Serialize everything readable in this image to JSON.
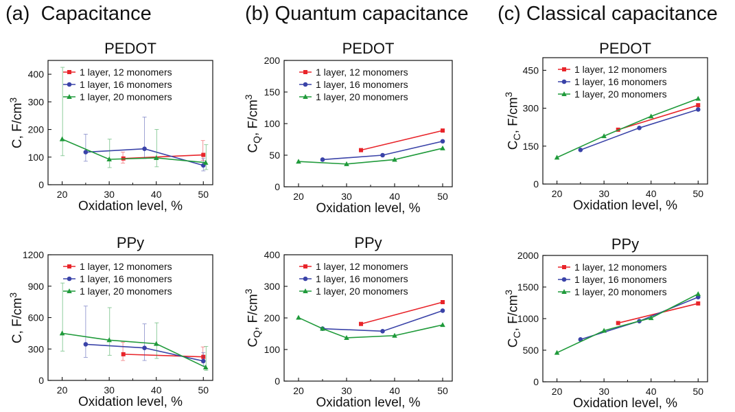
{
  "headings": [
    {
      "tag": "(a)",
      "title": "Capacitance"
    },
    {
      "tag": "(b)",
      "title": "Quantum capacitance"
    },
    {
      "tag": "(c)",
      "title": "Classical capacitance"
    }
  ],
  "colors": {
    "s12": "#e8242a",
    "s16": "#3a43a8",
    "s20": "#1f9a3a"
  },
  "markers": {
    "s12": "square",
    "s16": "circle",
    "s20": "triangle"
  },
  "chart_data": [
    {
      "type": "line",
      "title": "PEDOT",
      "xlabel": "Oxidation level, %",
      "ylabel": {
        "main": "C, F/cm",
        "sup": "3",
        "sub": ""
      },
      "xlim": [
        17,
        52
      ],
      "ylim": [
        0,
        450
      ],
      "xticks": [
        20,
        30,
        40,
        50
      ],
      "yticks": [
        0,
        100,
        200,
        300,
        400
      ],
      "legend": "top-right",
      "series": [
        {
          "name": "1 layer, 12 monomers",
          "key": "s12",
          "x": [
            33,
            50
          ],
          "y": [
            95,
            108
          ],
          "err_lo": [
            78,
            88
          ],
          "err_hi": [
            118,
            160
          ]
        },
        {
          "name": "1 layer, 16 monomers",
          "key": "s16",
          "x": [
            25,
            37.5,
            50
          ],
          "y": [
            118,
            130,
            70
          ],
          "err_lo": [
            85,
            95,
            50
          ],
          "err_hi": [
            183,
            245,
            95
          ]
        },
        {
          "name": "1 layer, 20 monomers",
          "key": "s20",
          "x": [
            20,
            30,
            40,
            50.5
          ],
          "y": [
            165,
            92,
            97,
            80
          ],
          "err_lo": [
            105,
            62,
            65,
            55
          ],
          "err_hi": [
            425,
            165,
            200,
            145
          ]
        }
      ]
    },
    {
      "type": "line",
      "title": "PEDOT",
      "xlabel": "Oxidation level, %",
      "ylabel": {
        "main": "C",
        "sup": "",
        "sub": "Q",
        "after": ", F/cm",
        "sup2": "3"
      },
      "xlim": [
        17,
        52
      ],
      "ylim": [
        0,
        200
      ],
      "xticks": [
        20,
        30,
        40,
        50
      ],
      "yticks": [
        0,
        50,
        100,
        150,
        200
      ],
      "legend": "top-right",
      "series": [
        {
          "name": "1 layer, 12 monomers",
          "key": "s12",
          "x": [
            33,
            50
          ],
          "y": [
            58,
            89
          ]
        },
        {
          "name": "1 layer, 16 monomers",
          "key": "s16",
          "x": [
            25,
            37.5,
            50
          ],
          "y": [
            43,
            50,
            72
          ]
        },
        {
          "name": "1 layer, 20 monomers",
          "key": "s20",
          "x": [
            20,
            30,
            40,
            50
          ],
          "y": [
            40,
            36,
            43,
            61
          ]
        }
      ]
    },
    {
      "type": "line",
      "title": "PEDOT",
      "xlabel": "Oxidation level, %",
      "ylabel": {
        "main": "C",
        "sup": "",
        "sub": "C",
        "after": ", F/cm",
        "sup2": "3"
      },
      "xlim": [
        17,
        52
      ],
      "ylim": [
        0,
        500
      ],
      "xticks": [
        20,
        30,
        40,
        50
      ],
      "yticks": [
        0,
        150,
        300,
        450
      ],
      "legend": "top-right",
      "series": [
        {
          "name": "1 layer, 12 monomers",
          "key": "s12",
          "x": [
            33,
            50
          ],
          "y": [
            215,
            312
          ]
        },
        {
          "name": "1 layer, 16 monomers",
          "key": "s16",
          "x": [
            25,
            37.5,
            50
          ],
          "y": [
            135,
            222,
            295
          ]
        },
        {
          "name": "1 layer, 20 monomers",
          "key": "s20",
          "x": [
            20,
            30,
            40,
            50
          ],
          "y": [
            105,
            190,
            268,
            338
          ]
        }
      ]
    },
    {
      "type": "line",
      "title": "PPy",
      "xlabel": "Oxidation level, %",
      "ylabel": {
        "main": "C, F/cm",
        "sup": "3",
        "sub": ""
      },
      "xlim": [
        17,
        52
      ],
      "ylim": [
        0,
        1200
      ],
      "xticks": [
        20,
        30,
        40,
        50
      ],
      "yticks": [
        0,
        300,
        600,
        900,
        1200
      ],
      "legend": "top-right",
      "series": [
        {
          "name": "1 layer, 12 monomers",
          "key": "s12",
          "x": [
            33,
            50
          ],
          "y": [
            250,
            225
          ],
          "err_lo": [
            190,
            170
          ],
          "err_hi": [
            365,
            320
          ]
        },
        {
          "name": "1 layer, 16 monomers",
          "key": "s16",
          "x": [
            25,
            37.5,
            50
          ],
          "y": [
            345,
            310,
            185
          ],
          "err_lo": [
            220,
            190,
            140
          ],
          "err_hi": [
            710,
            540,
            265
          ]
        },
        {
          "name": "1 layer, 20 monomers",
          "key": "s20",
          "x": [
            20,
            30,
            40,
            50.5
          ],
          "y": [
            450,
            385,
            350,
            125
          ],
          "err_lo": [
            280,
            240,
            210,
            95
          ],
          "err_hi": [
            930,
            695,
            550,
            325
          ]
        }
      ]
    },
    {
      "type": "line",
      "title": "PPy",
      "xlabel": "Oxidation level, %",
      "ylabel": {
        "main": "C",
        "sup": "",
        "sub": "Q",
        "after": ", F/cm",
        "sup2": "3"
      },
      "xlim": [
        17,
        52
      ],
      "ylim": [
        0,
        400
      ],
      "xticks": [
        20,
        30,
        40,
        50
      ],
      "yticks": [
        0,
        100,
        200,
        300,
        400
      ],
      "legend": "top-right",
      "series": [
        {
          "name": "1 layer, 12 monomers",
          "key": "s12",
          "x": [
            33,
            50
          ],
          "y": [
            181,
            250
          ]
        },
        {
          "name": "1 layer, 16 monomers",
          "key": "s16",
          "x": [
            25,
            37.5,
            50
          ],
          "y": [
            166,
            158,
            223
          ]
        },
        {
          "name": "1 layer, 20 monomers",
          "key": "s20",
          "x": [
            20,
            25,
            30,
            40,
            50
          ],
          "y": [
            201,
            166,
            137,
            144,
            178
          ]
        }
      ]
    },
    {
      "type": "line",
      "title": "PPy",
      "xlabel": "Oxidation level, %",
      "ylabel": {
        "main": "C",
        "sup": "",
        "sub": "C",
        "after": ", F/cm",
        "sup2": "3"
      },
      "xlim": [
        17,
        52
      ],
      "ylim": [
        0,
        2000
      ],
      "xticks": [
        20,
        30,
        40,
        50
      ],
      "yticks": [
        0,
        500,
        1000,
        1500,
        2000
      ],
      "legend": "top-right",
      "series": [
        {
          "name": "1 layer, 12 monomers",
          "key": "s12",
          "x": [
            33,
            50
          ],
          "y": [
            930,
            1240
          ]
        },
        {
          "name": "1 layer, 16 monomers",
          "key": "s16",
          "x": [
            25,
            37.5,
            50
          ],
          "y": [
            670,
            960,
            1340
          ]
        },
        {
          "name": "1 layer, 20 monomers",
          "key": "s20",
          "x": [
            20,
            30,
            40,
            50
          ],
          "y": [
            460,
            810,
            1010,
            1390
          ]
        }
      ]
    }
  ]
}
